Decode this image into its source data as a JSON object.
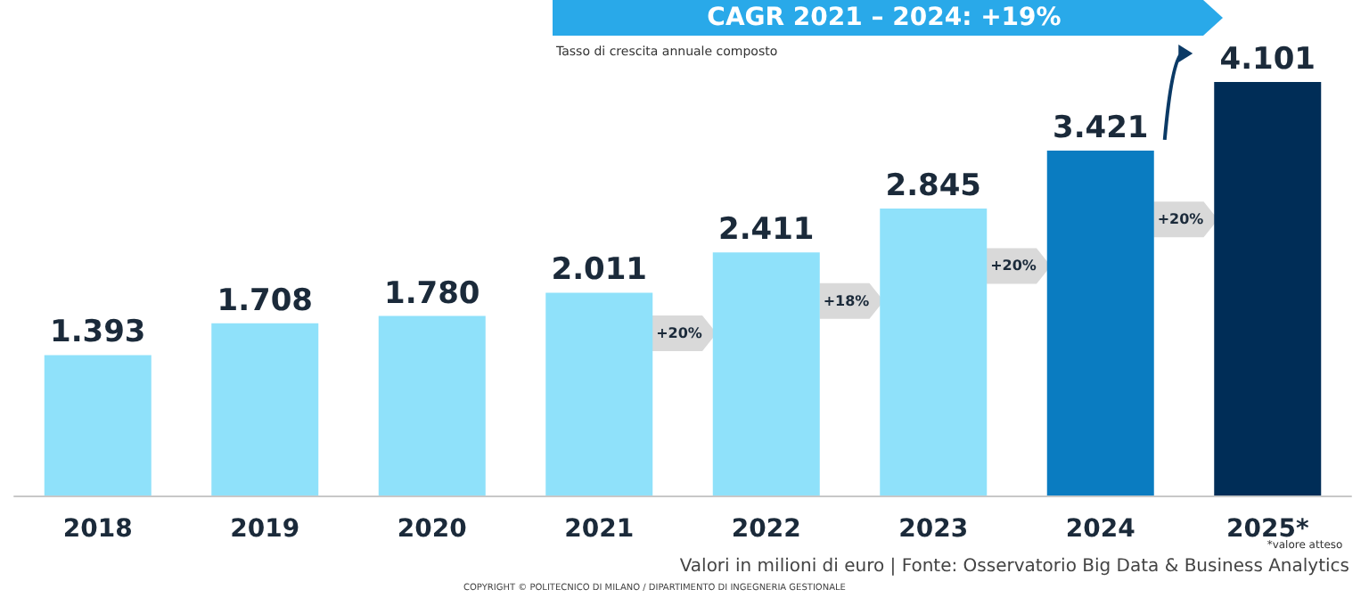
{
  "chart_data": {
    "type": "bar",
    "title": "CAGR 2021 – 2024: +19%",
    "subtitle": "Tasso di crescita annuale composto",
    "categories": [
      "2018",
      "2019",
      "2020",
      "2021",
      "2022",
      "2023",
      "2024",
      "2025*"
    ],
    "values": [
      1393,
      1708,
      1780,
      2011,
      2411,
      2845,
      3421,
      4101
    ],
    "value_labels": [
      "1.393",
      "1.708",
      "1.780",
      "2.011",
      "2.411",
      "2.845",
      "3.421",
      "4.101"
    ],
    "colors": [
      "#8fe1fa",
      "#8fe1fa",
      "#8fe1fa",
      "#8fe1fa",
      "#8fe1fa",
      "#8fe1fa",
      "#0a7cc1",
      "#002d57"
    ],
    "grid": false,
    "annotations": [
      "+20%",
      "+18%",
      "+20%",
      "+20%",
      "*valore atteso",
      "Valori in milioni di euro | Fonte: Osservatorio Big Data & Business Analytics",
      "COPYRIGHT © POLITECNICO DI MILANO / DIPARTIMENTO DI INGEGNERIA GESTIONALE"
    ]
  }
}
